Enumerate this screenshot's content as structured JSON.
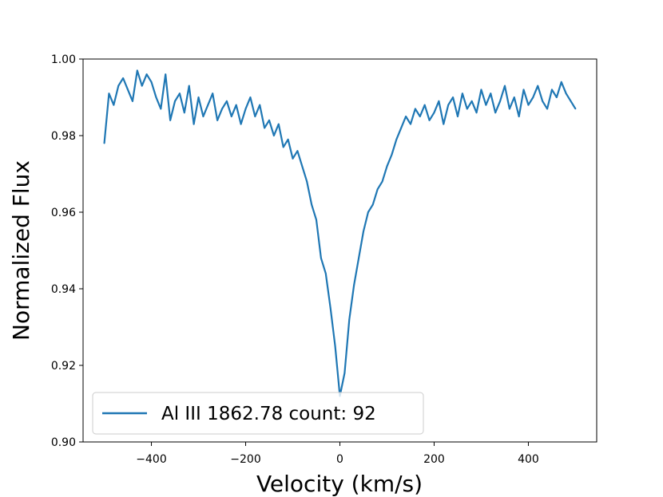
{
  "chart_data": {
    "type": "line",
    "title": "",
    "xlabel": "Velocity (km/s)",
    "ylabel": "Normalized Flux",
    "xlim": [
      -545,
      545
    ],
    "ylim": [
      0.9,
      1.0
    ],
    "x_ticks": [
      -400,
      -200,
      0,
      200,
      400
    ],
    "x_tick_labels": [
      "−400",
      "−200",
      "0",
      "200",
      "400"
    ],
    "y_ticks": [
      0.9,
      0.92,
      0.94,
      0.96,
      0.98,
      1.0
    ],
    "y_tick_labels": [
      "0.90",
      "0.92",
      "0.94",
      "0.96",
      "0.98",
      "1.00"
    ],
    "grid": false,
    "legend_position": "bottom-left",
    "series": [
      {
        "name": "Al III 1862.78 count: 92",
        "color": "#1f77b4",
        "x": [
          -500,
          -490,
          -480,
          -470,
          -460,
          -450,
          -440,
          -430,
          -420,
          -410,
          -400,
          -390,
          -380,
          -370,
          -360,
          -350,
          -340,
          -330,
          -320,
          -310,
          -300,
          -290,
          -280,
          -270,
          -260,
          -250,
          -240,
          -230,
          -220,
          -210,
          -200,
          -190,
          -180,
          -170,
          -160,
          -150,
          -140,
          -130,
          -120,
          -110,
          -100,
          -90,
          -80,
          -70,
          -60,
          -50,
          -40,
          -30,
          -20,
          -10,
          0,
          10,
          20,
          30,
          40,
          50,
          60,
          70,
          80,
          90,
          100,
          110,
          120,
          130,
          140,
          150,
          160,
          170,
          180,
          190,
          200,
          210,
          220,
          230,
          240,
          250,
          260,
          270,
          280,
          290,
          300,
          310,
          320,
          330,
          340,
          350,
          360,
          370,
          380,
          390,
          400,
          410,
          420,
          430,
          440,
          450,
          460,
          470,
          480,
          490,
          500
        ],
        "y": [
          0.978,
          0.991,
          0.988,
          0.993,
          0.995,
          0.992,
          0.989,
          0.997,
          0.993,
          0.996,
          0.994,
          0.99,
          0.987,
          0.996,
          0.984,
          0.989,
          0.991,
          0.986,
          0.993,
          0.983,
          0.99,
          0.985,
          0.988,
          0.991,
          0.984,
          0.987,
          0.989,
          0.985,
          0.988,
          0.983,
          0.987,
          0.99,
          0.985,
          0.988,
          0.982,
          0.984,
          0.98,
          0.983,
          0.977,
          0.979,
          0.974,
          0.976,
          0.972,
          0.968,
          0.962,
          0.958,
          0.948,
          0.944,
          0.935,
          0.925,
          0.912,
          0.918,
          0.932,
          0.941,
          0.948,
          0.955,
          0.96,
          0.962,
          0.966,
          0.968,
          0.972,
          0.975,
          0.979,
          0.982,
          0.985,
          0.983,
          0.987,
          0.985,
          0.988,
          0.984,
          0.986,
          0.989,
          0.983,
          0.988,
          0.99,
          0.985,
          0.991,
          0.987,
          0.989,
          0.986,
          0.992,
          0.988,
          0.991,
          0.986,
          0.989,
          0.993,
          0.987,
          0.99,
          0.985,
          0.992,
          0.988,
          0.99,
          0.993,
          0.989,
          0.987,
          0.992,
          0.99,
          0.994,
          0.991,
          0.989,
          0.987
        ]
      }
    ]
  }
}
